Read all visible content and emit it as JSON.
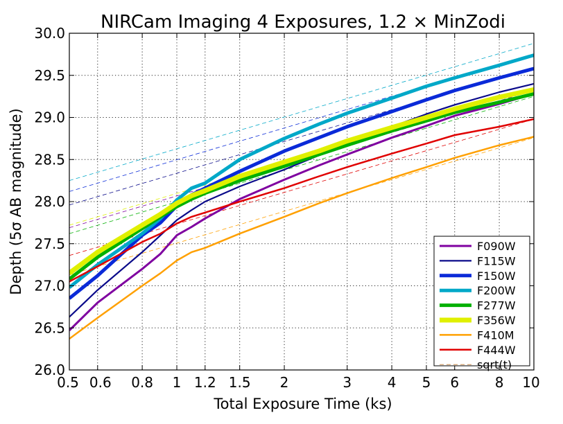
{
  "chart_data": {
    "type": "line",
    "title": "NIRCam Imaging 4 Exposures, 1.2 × MinZodi",
    "xlabel": "Total Exposure Time (ks)",
    "ylabel": "Depth (5σ AB magnitude)",
    "xscale": "log",
    "xlim": [
      0.5,
      10
    ],
    "ylim": [
      26.0,
      30.0
    ],
    "xticks": [
      0.5,
      0.6,
      0.8,
      1,
      1.2,
      1.5,
      2,
      3,
      4,
      5,
      6,
      8,
      10
    ],
    "xtick_labels": [
      "0.5",
      "0.6",
      "0.8",
      "1",
      "1.2",
      "1.5",
      "2",
      "3",
      "4",
      "5",
      "6",
      "8",
      "10"
    ],
    "yticks": [
      26.0,
      26.5,
      27.0,
      27.5,
      28.0,
      28.5,
      29.0,
      29.5,
      30.0
    ],
    "ytick_labels": [
      "26.0",
      "26.5",
      "27.0",
      "27.5",
      "28.0",
      "28.5",
      "29.0",
      "29.5",
      "30.0"
    ],
    "grid": true,
    "legend_position": "bottom-right",
    "x": [
      0.5,
      0.6,
      0.8,
      0.9,
      1.0,
      1.1,
      1.2,
      1.5,
      2.0,
      2.5,
      3.0,
      4.0,
      5.0,
      6.0,
      8.0,
      10.0
    ],
    "series": [
      {
        "name": "F090W",
        "color": "#7f00a0",
        "width": 3,
        "values": [
          26.47,
          26.8,
          27.2,
          27.38,
          27.6,
          27.7,
          27.8,
          28.03,
          28.26,
          28.43,
          28.56,
          28.76,
          28.9,
          29.02,
          29.16,
          29.28
        ]
      },
      {
        "name": "F115W",
        "color": "#0a0a8a",
        "width": 2.2,
        "values": [
          26.63,
          26.95,
          27.4,
          27.6,
          27.78,
          27.9,
          28.0,
          28.18,
          28.38,
          28.55,
          28.69,
          28.89,
          29.04,
          29.15,
          29.3,
          29.4
        ]
      },
      {
        "name": "F150W",
        "color": "#0a2ad8",
        "width": 5,
        "values": [
          26.85,
          27.12,
          27.6,
          27.75,
          27.95,
          28.08,
          28.16,
          28.36,
          28.6,
          28.76,
          28.89,
          29.07,
          29.21,
          29.32,
          29.47,
          29.58
        ]
      },
      {
        "name": "F200W",
        "color": "#00a8c8",
        "width": 5,
        "values": [
          26.98,
          27.25,
          27.62,
          27.8,
          28.02,
          28.16,
          28.22,
          28.5,
          28.75,
          28.92,
          29.05,
          29.23,
          29.37,
          29.47,
          29.62,
          29.74
        ]
      },
      {
        "name": "F277W",
        "color": "#00b000",
        "width": 5,
        "values": [
          27.08,
          27.34,
          27.68,
          27.82,
          27.94,
          28.03,
          28.1,
          28.25,
          28.42,
          28.56,
          28.67,
          28.84,
          28.96,
          29.06,
          29.18,
          29.28
        ]
      },
      {
        "name": "F356W",
        "color": "#e0f000",
        "width": 7,
        "values": [
          27.15,
          27.4,
          27.72,
          27.85,
          27.98,
          28.07,
          28.13,
          28.3,
          28.47,
          28.6,
          28.72,
          28.88,
          29.0,
          29.1,
          29.24,
          29.33
        ]
      },
      {
        "name": "F410M",
        "color": "#ffa000",
        "width": 2.5,
        "values": [
          26.37,
          26.62,
          27.0,
          27.15,
          27.3,
          27.4,
          27.45,
          27.62,
          27.82,
          27.98,
          28.1,
          28.28,
          28.41,
          28.52,
          28.67,
          28.77
        ]
      },
      {
        "name": "F444W",
        "color": "#e00000",
        "width": 2.5,
        "values": [
          27.05,
          27.23,
          27.52,
          27.62,
          27.74,
          27.82,
          27.87,
          28.0,
          28.16,
          28.3,
          28.41,
          28.57,
          28.69,
          28.79,
          28.89,
          28.98
        ]
      }
    ],
    "reference_lines": {
      "label": "sqrt(t)",
      "style": "thin dashed, colored to match each filter",
      "x": [
        0.5,
        10
      ],
      "values": {
        "F090W": [
          27.69,
          29.32
        ],
        "F115W": [
          27.96,
          29.59
        ],
        "F150W": [
          28.12,
          29.75
        ],
        "F200W": [
          28.25,
          29.88
        ],
        "F277W": [
          27.62,
          29.25
        ],
        "F356W": [
          27.72,
          29.35
        ],
        "F410M": [
          27.13,
          28.76
        ],
        "F444W": [
          27.36,
          28.98
        ]
      }
    }
  }
}
